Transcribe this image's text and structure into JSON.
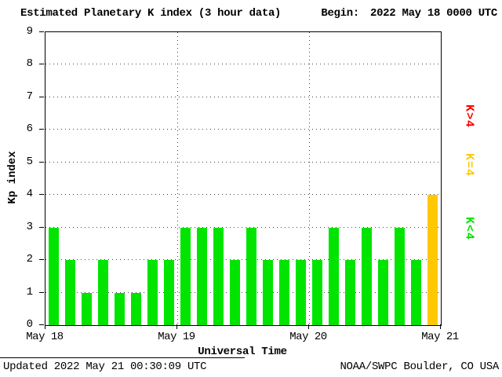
{
  "header": {
    "title": "Estimated Planetary K index (3 hour data)",
    "begin_label": "Begin:",
    "begin_value": "2022 May 18 0000 UTC"
  },
  "chart_data": {
    "type": "bar",
    "title": "Estimated Planetary K index (3 hour data)",
    "xlabel": "Universal Time",
    "ylabel": "Kp index",
    "ylim": [
      0,
      9
    ],
    "interval_hours": 3,
    "x_tick_labels": [
      "May 18",
      "May 19",
      "May 20",
      "May 21"
    ],
    "y_tick_labels": [
      0,
      1,
      2,
      3,
      4,
      5,
      6,
      7,
      8,
      9
    ],
    "values": [
      3,
      2,
      1,
      2,
      1,
      1,
      2,
      2,
      3,
      3,
      3,
      2,
      3,
      2,
      2,
      2,
      2,
      3,
      2,
      3,
      2,
      3,
      2,
      4
    ],
    "colors": {
      "lt4": "#00e400",
      "eq4": "#ffc800",
      "gt4": "#ff0000"
    },
    "grid": {
      "horizontal": "dotted at each integer Kp",
      "vertical": "dotted at day boundaries"
    },
    "legend_position": "right"
  },
  "legend": {
    "items": [
      {
        "label": "K>4",
        "color": "#ff0000"
      },
      {
        "label": "K=4",
        "color": "#ffc800"
      },
      {
        "label": "K<4",
        "color": "#00e400"
      }
    ]
  },
  "footer": {
    "updated": "Updated 2022 May 21 00:30:09 UTC",
    "credit": "NOAA/SWPC Boulder, CO USA"
  }
}
